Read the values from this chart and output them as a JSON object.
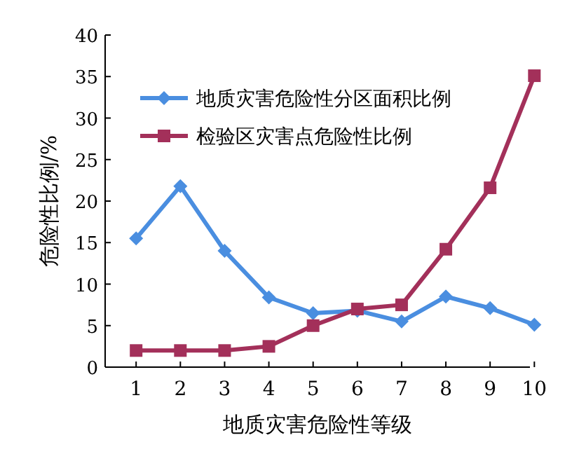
{
  "chart_data": {
    "type": "line",
    "xlabel": "地质灾害危险性等级",
    "ylabel": "危险性比例/%",
    "categories": [
      "1",
      "2",
      "3",
      "4",
      "5",
      "6",
      "7",
      "8",
      "9",
      "10"
    ],
    "ylim": [
      0,
      40
    ],
    "yticks": [
      0,
      5,
      10,
      15,
      20,
      25,
      30,
      35,
      40
    ],
    "legend": "top",
    "grid": false,
    "series": [
      {
        "name": "地质灾害危险性分区面积比例",
        "color": "#4a8ee0",
        "marker": "diamond",
        "values": [
          15.5,
          21.8,
          14,
          8.4,
          6.5,
          6.8,
          5.5,
          8.5,
          7.1,
          5.1
        ]
      },
      {
        "name": "检验区灾害点危险性比例",
        "color": "#a3305a",
        "marker": "square",
        "values": [
          2,
          2,
          2,
          2.5,
          5,
          7,
          7.5,
          14.2,
          21.6,
          35.1
        ]
      }
    ]
  }
}
